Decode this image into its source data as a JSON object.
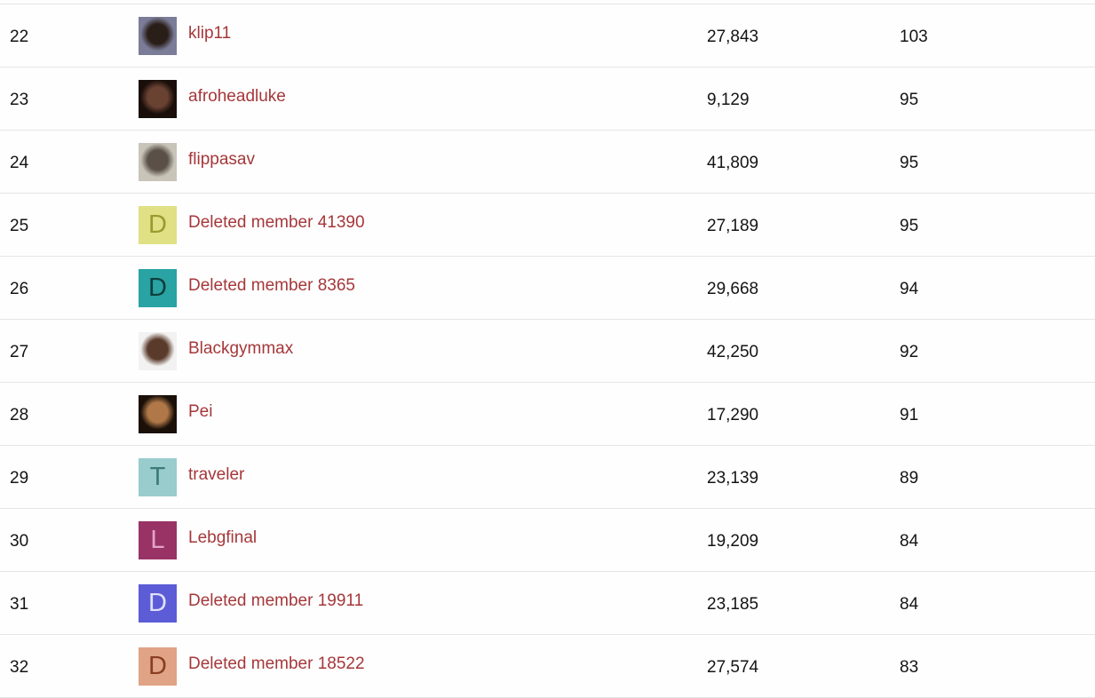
{
  "members": [
    {
      "rank": "22",
      "name": "klip11",
      "avatar": {
        "type": "photo",
        "colors": [
          "#7a7c98",
          "#2a1e18"
        ]
      },
      "messages": "27,843",
      "score": "103"
    },
    {
      "rank": "23",
      "name": "afroheadluke",
      "avatar": {
        "type": "photo",
        "colors": [
          "#1a0e0a",
          "#6a4232"
        ]
      },
      "messages": "9,129",
      "score": "95"
    },
    {
      "rank": "24",
      "name": "flippasav",
      "avatar": {
        "type": "photo",
        "colors": [
          "#c8c4b8",
          "#5a5048"
        ]
      },
      "messages": "41,809",
      "score": "95"
    },
    {
      "rank": "25",
      "name": "Deleted member 41390",
      "avatar": {
        "type": "letter",
        "letter": "D",
        "bg": "#e0e085",
        "fg": "#9a9a2e"
      },
      "messages": "27,189",
      "score": "95"
    },
    {
      "rank": "26",
      "name": "Deleted member 8365",
      "avatar": {
        "type": "letter",
        "letter": "D",
        "bg": "#29a3a3",
        "fg": "#0f3d3d"
      },
      "messages": "29,668",
      "score": "94"
    },
    {
      "rank": "27",
      "name": "Blackgymmax",
      "avatar": {
        "type": "photo",
        "colors": [
          "#f2f2f2",
          "#5a3a2a"
        ]
      },
      "messages": "42,250",
      "score": "92"
    },
    {
      "rank": "28",
      "name": "Pei",
      "avatar": {
        "type": "photo",
        "colors": [
          "#1a1008",
          "#b07848"
        ]
      },
      "messages": "17,290",
      "score": "91"
    },
    {
      "rank": "29",
      "name": "traveler",
      "avatar": {
        "type": "letter",
        "letter": "T",
        "bg": "#99cccc",
        "fg": "#3d7a7a"
      },
      "messages": "23,139",
      "score": "89"
    },
    {
      "rank": "30",
      "name": "Lebgfinal",
      "avatar": {
        "type": "letter",
        "letter": "L",
        "bg": "#993366",
        "fg": "#e6a3c7"
      },
      "messages": "19,209",
      "score": "84"
    },
    {
      "rank": "31",
      "name": "Deleted member 19911",
      "avatar": {
        "type": "letter",
        "letter": "D",
        "bg": "#5c5cd6",
        "fg": "#e0e0fa"
      },
      "messages": "23,185",
      "score": "84"
    },
    {
      "rank": "32",
      "name": "Deleted member 18522",
      "avatar": {
        "type": "letter",
        "letter": "D",
        "bg": "#e0a385",
        "fg": "#8a3d1f"
      },
      "messages": "27,574",
      "score": "83"
    }
  ]
}
